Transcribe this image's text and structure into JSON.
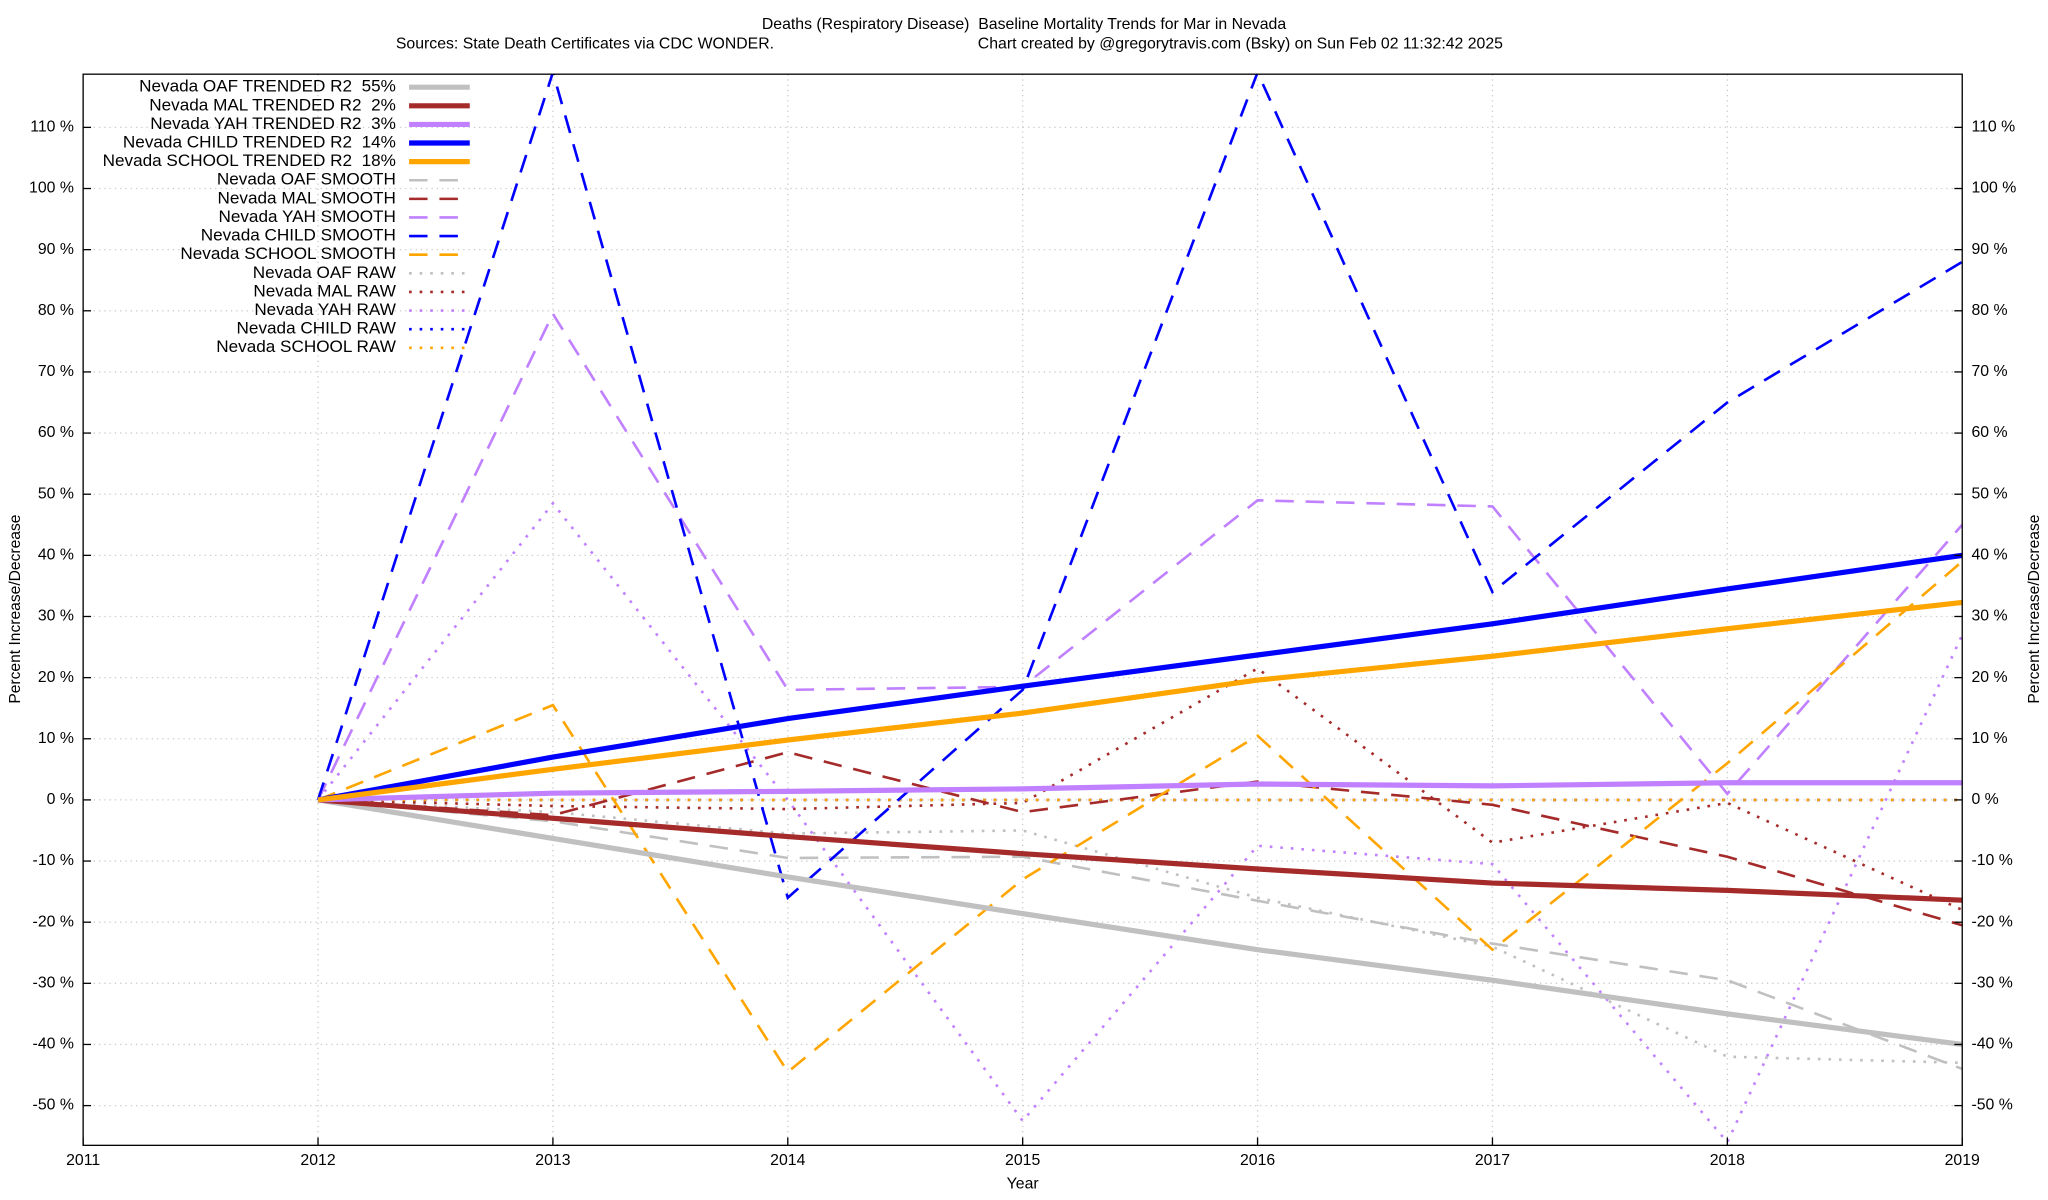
{
  "chart_data": {
    "type": "line",
    "title": "Deaths (Respiratory Disease)  Baseline Mortality Trends for Mar in Nevada",
    "source": "Sources: State Death Certificates via CDC WONDER.",
    "credit": "Chart created by @gregorytravis.com (Bsky) on Sun Feb 02 11:32:42 2025",
    "x_label": "Year",
    "y_label": "Percent Increase/Decrease",
    "y2_label": "Percent Increase/Decrease",
    "x": [
      2012,
      2013,
      2014,
      2015,
      2016,
      2017,
      2018,
      2019
    ],
    "xlim": [
      2011,
      2019
    ],
    "xticks": [
      2011,
      2012,
      2013,
      2014,
      2015,
      2016,
      2017,
      2018,
      2019
    ],
    "ylim": [
      -56.5,
      118.7
    ],
    "yticks": [
      {
        "value": -50,
        "label": "-50 %"
      },
      {
        "value": -40,
        "label": "-40 %"
      },
      {
        "value": -30,
        "label": "-30 %"
      },
      {
        "value": -20,
        "label": "-20 %"
      },
      {
        "value": -10,
        "label": "-10 %"
      },
      {
        "value": 0,
        "label": "0 %"
      },
      {
        "value": 10,
        "label": "10 %"
      },
      {
        "value": 20,
        "label": "20 %"
      },
      {
        "value": 30,
        "label": "30 %"
      },
      {
        "value": 40,
        "label": "40 %"
      },
      {
        "value": 50,
        "label": "50 %"
      },
      {
        "value": 60,
        "label": "60 %"
      },
      {
        "value": 70,
        "label": "70 %"
      },
      {
        "value": 80,
        "label": "80 %"
      },
      {
        "value": 90,
        "label": "90 %"
      },
      {
        "value": 100,
        "label": "100 %"
      },
      {
        "value": 110,
        "label": "110 %"
      }
    ],
    "grid": true,
    "legend": "top-left",
    "series": [
      {
        "name": "Nevada OAF TRENDED R2  55%",
        "color": "#c0c0c0",
        "style": "solid",
        "values": [
          0,
          -6.3,
          -12.6,
          -18.6,
          -24.5,
          -29.5,
          -35,
          -40
        ]
      },
      {
        "name": "Nevada MAL TRENDED R2  2%",
        "color": "#a52a2a",
        "style": "solid",
        "values": [
          0,
          -3,
          -6,
          -8.8,
          -11.3,
          -13.6,
          -14.8,
          -16.4
        ]
      },
      {
        "name": "Nevada YAH TRENDED R2  3%",
        "color": "#c080ff",
        "style": "solid",
        "values": [
          0,
          1.1,
          1.4,
          1.8,
          2.6,
          2.3,
          2.8,
          2.8
        ]
      },
      {
        "name": "Nevada CHILD TRENDED R2  14%",
        "color": "#0000ff",
        "style": "solid",
        "values": [
          0,
          7,
          13.3,
          18.6,
          23.7,
          28.8,
          34.5,
          40
        ]
      },
      {
        "name": "Nevada SCHOOL TRENDED R2  18%",
        "color": "#ffa500",
        "style": "solid",
        "values": [
          0,
          5,
          9.8,
          14.2,
          19.6,
          23.5,
          28,
          32.3
        ]
      },
      {
        "name": "Nevada OAF SMOOTH",
        "color": "#c0c0c0",
        "style": "dashed",
        "values": [
          0,
          -3.5,
          -9.5,
          -9.3,
          -16.5,
          -23.5,
          -29.5,
          -44
        ]
      },
      {
        "name": "Nevada MAL SMOOTH",
        "color": "#a52a2a",
        "style": "dashed",
        "values": [
          0,
          -2.5,
          7.8,
          -2,
          3,
          -0.8,
          -9.3,
          -20.5
        ]
      },
      {
        "name": "Nevada YAH SMOOTH",
        "color": "#c080ff",
        "style": "dashed",
        "values": [
          0,
          79.5,
          18,
          18.5,
          49,
          48,
          1,
          45
        ]
      },
      {
        "name": "Nevada CHILD SMOOTH",
        "color": "#0000ff",
        "style": "dashed",
        "values": [
          0,
          119,
          -16,
          18,
          119,
          34,
          65,
          88
        ]
      },
      {
        "name": "Nevada SCHOOL SMOOTH",
        "color": "#ffa500",
        "style": "dashed",
        "values": [
          0,
          15.5,
          -44.5,
          -13,
          10.5,
          -24.5,
          6,
          39
        ]
      },
      {
        "name": "Nevada OAF RAW",
        "color": "#c0c0c0",
        "style": "dotted",
        "values": [
          0,
          -2,
          -5.5,
          -5,
          -16,
          -24,
          -42,
          -43
        ]
      },
      {
        "name": "Nevada MAL RAW",
        "color": "#a52a2a",
        "style": "dotted",
        "values": [
          0,
          -1,
          -1.5,
          -0.5,
          21.5,
          -7,
          -0.5,
          -18
        ]
      },
      {
        "name": "Nevada YAH RAW",
        "color": "#c080ff",
        "style": "dotted",
        "values": [
          0,
          48.5,
          0,
          -52.5,
          -7.5,
          -10.5,
          -56,
          27
        ]
      },
      {
        "name": "Nevada CHILD RAW",
        "color": "#0000ff",
        "style": "dotted",
        "values": [
          0,
          0,
          0,
          0,
          0,
          0,
          0,
          0
        ]
      },
      {
        "name": "Nevada SCHOOL RAW",
        "color": "#ffa500",
        "style": "dotted",
        "values": [
          0,
          0,
          0,
          0,
          0,
          0,
          0,
          0
        ]
      }
    ]
  }
}
